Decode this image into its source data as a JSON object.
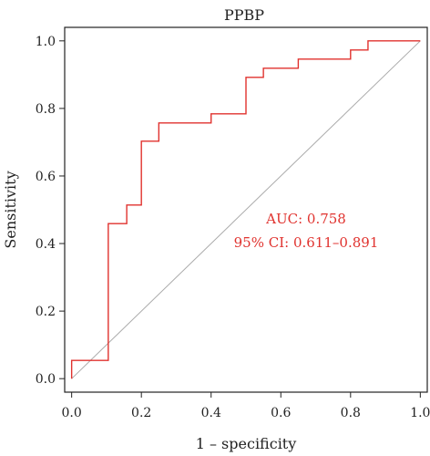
{
  "chart_data": {
    "type": "line",
    "title": "PPBP",
    "xlabel": "1 – specificity",
    "ylabel": "Sensitivity",
    "xlim": [
      -0.02,
      1.02
    ],
    "ylim": [
      -0.04,
      1.04
    ],
    "x_ticks": [
      "0.0",
      "0.2",
      "0.4",
      "0.6",
      "0.8",
      "1.0"
    ],
    "y_ticks": [
      "0.0",
      "0.2",
      "0.4",
      "0.6",
      "0.8",
      "1.0"
    ],
    "grid": false,
    "legend": "none",
    "series": [
      {
        "name": "",
        "color": "#e0322e",
        "x": [
          0.0,
          0.0,
          0.105,
          0.105,
          0.158,
          0.158,
          0.2,
          0.2,
          0.25,
          0.25,
          0.4,
          0.4,
          0.5,
          0.5,
          0.55,
          0.55,
          0.65,
          0.65,
          0.8,
          0.8,
          0.85,
          0.85,
          1.0
        ],
        "y": [
          0.0,
          0.054,
          0.054,
          0.459,
          0.459,
          0.514,
          0.514,
          0.703,
          0.703,
          0.757,
          0.757,
          0.784,
          0.784,
          0.892,
          0.892,
          0.919,
          0.919,
          0.946,
          0.946,
          0.973,
          0.973,
          1.0,
          1.0
        ]
      }
    ],
    "reference_line": {
      "color": "#aaaaaa",
      "x": [
        0,
        1
      ],
      "y": [
        0,
        1
      ]
    },
    "annotations": [
      {
        "text": "AUC: 0.758",
        "color": "#e0322e"
      },
      {
        "text": "95% CI: 0.611–0.891",
        "color": "#e0322e"
      }
    ]
  }
}
